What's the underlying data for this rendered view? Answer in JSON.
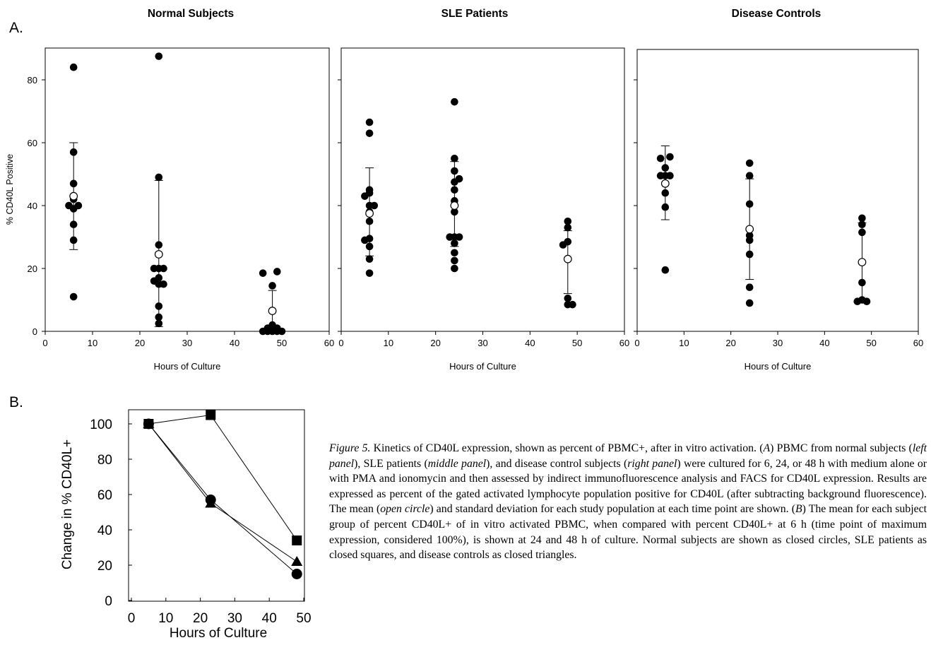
{
  "panel_a_label": "A.",
  "panel_b_label": "B.",
  "caption": {
    "fig_label": "Figure 5.",
    "t1": " Kinetics of CD40L expression, shown as percent of PBMC+, after in vitro activation. (",
    "A": "A",
    "t2": ") PBMC from normal subjects (",
    "left_panel": "left panel",
    "t3": "), SLE patients (",
    "middle_panel": "middle panel",
    "t4": "), and disease control subjects (",
    "right_panel": "right panel",
    "t5": ") were cultured for 6, 24, or 48 h with medium alone or with PMA and ionomycin and then assessed by indirect immunofluorescence analysis and FACS for CD40L expression. Results are expressed as percent of the gated activated lymphocyte population positive for CD40L (after subtracting background fluorescence). The mean (",
    "open_circle": "open circle",
    "t6": ") and standard deviation for each study population at each time point are shown. (",
    "B": "B",
    "t7": ") The mean for each subject group of percent CD40L+ of in vitro activated PBMC, when compared with percent CD40L+ at 6 h (time point of maximum expression, considered 100%), is shown at 24 and 48 h of culture. Normal subjects are shown as closed circles, SLE patients as closed squares, and disease controls as closed triangles."
  },
  "chart_data": [
    {
      "type": "scatter",
      "title": "Normal Subjects",
      "xlabel": "Hours of Culture",
      "ylabel": "% CD40L Positive",
      "xlim": [
        0,
        60
      ],
      "ylim": [
        0,
        90
      ],
      "xticks": [
        0,
        10,
        20,
        30,
        40,
        50,
        60
      ],
      "yticks": [
        0,
        20,
        40,
        60,
        80
      ],
      "points": [
        [
          6,
          84
        ],
        [
          6,
          57
        ],
        [
          6,
          47
        ],
        [
          6,
          43
        ],
        [
          6,
          42
        ],
        [
          5,
          40
        ],
        [
          7,
          40
        ],
        [
          6,
          39
        ],
        [
          6,
          34
        ],
        [
          6,
          29
        ],
        [
          6,
          11
        ],
        [
          24,
          87.5
        ],
        [
          24,
          49
        ],
        [
          24,
          27.5
        ],
        [
          23,
          20
        ],
        [
          24,
          20
        ],
        [
          25,
          20
        ],
        [
          24,
          17
        ],
        [
          23,
          16
        ],
        [
          24,
          15
        ],
        [
          25,
          15
        ],
        [
          24,
          8
        ],
        [
          24,
          4.5
        ],
        [
          24,
          2.5
        ],
        [
          46,
          18.5
        ],
        [
          49,
          19
        ],
        [
          48,
          14.5
        ],
        [
          48,
          2
        ],
        [
          47,
          1
        ],
        [
          49,
          1
        ],
        [
          46,
          0
        ],
        [
          47,
          0
        ],
        [
          48,
          0
        ],
        [
          49,
          0
        ],
        [
          50,
          0
        ]
      ],
      "means": [
        {
          "x": 6,
          "y": 43,
          "sd": [
            26,
            60
          ]
        },
        {
          "x": 24,
          "y": 24.5,
          "sd": [
            1.5,
            48
          ]
        },
        {
          "x": 48,
          "y": 6.5,
          "sd": [
            0,
            13
          ]
        }
      ]
    },
    {
      "type": "scatter",
      "title": "SLE Patients",
      "xlabel": "Hours of Culture",
      "xlim": [
        0,
        60
      ],
      "ylim": [
        0,
        90
      ],
      "xticks": [
        0,
        10,
        20,
        30,
        40,
        50,
        60
      ],
      "points": [
        [
          6,
          66.5
        ],
        [
          6,
          63
        ],
        [
          6,
          45
        ],
        [
          6,
          44
        ],
        [
          5,
          43
        ],
        [
          6,
          40
        ],
        [
          7,
          40
        ],
        [
          6,
          38
        ],
        [
          6,
          35
        ],
        [
          5,
          29
        ],
        [
          6,
          29.5
        ],
        [
          6,
          27
        ],
        [
          6,
          23
        ],
        [
          6,
          18.5
        ],
        [
          24,
          73
        ],
        [
          24,
          55
        ],
        [
          24,
          51
        ],
        [
          25,
          48.5
        ],
        [
          24,
          47.5
        ],
        [
          24,
          45
        ],
        [
          24,
          41.5
        ],
        [
          24,
          38
        ],
        [
          23,
          30
        ],
        [
          24,
          30
        ],
        [
          25,
          30
        ],
        [
          24,
          28
        ],
        [
          24,
          25
        ],
        [
          24,
          22.5
        ],
        [
          24,
          20
        ],
        [
          47,
          27.5
        ],
        [
          48,
          35
        ],
        [
          48,
          33
        ],
        [
          48,
          28.5
        ],
        [
          48,
          10.5
        ],
        [
          48,
          8.5
        ],
        [
          49,
          8.5
        ]
      ],
      "means": [
        {
          "x": 6,
          "y": 37.5,
          "sd": [
            24,
            52
          ]
        },
        {
          "x": 24,
          "y": 40,
          "sd": [
            27,
            54
          ]
        },
        {
          "x": 48,
          "y": 23,
          "sd": [
            12,
            32
          ]
        }
      ]
    },
    {
      "type": "scatter",
      "title": "Disease Controls",
      "xlabel": "Hours of Culture",
      "xlim": [
        0,
        60
      ],
      "ylim": [
        0,
        90
      ],
      "xticks": [
        0,
        10,
        20,
        30,
        40,
        50,
        60
      ],
      "points": [
        [
          5,
          55
        ],
        [
          7,
          55.5
        ],
        [
          6,
          52
        ],
        [
          5,
          49.5
        ],
        [
          6,
          49.5
        ],
        [
          7,
          49.5
        ],
        [
          6,
          44
        ],
        [
          6,
          39.5
        ],
        [
          6,
          19.5
        ],
        [
          24,
          53.5
        ],
        [
          24,
          49.5
        ],
        [
          24,
          40.5
        ],
        [
          24,
          30.5
        ],
        [
          24,
          29
        ],
        [
          24,
          24.5
        ],
        [
          24,
          14
        ],
        [
          24,
          9
        ],
        [
          48,
          36
        ],
        [
          48,
          34
        ],
        [
          48,
          31.5
        ],
        [
          48,
          15.5
        ],
        [
          47,
          9.5
        ],
        [
          48,
          10
        ],
        [
          49,
          9.5
        ]
      ],
      "means": [
        {
          "x": 6,
          "y": 47,
          "sd": [
            35.5,
            59
          ]
        },
        {
          "x": 24,
          "y": 32.5,
          "sd": [
            16.5,
            48.5
          ]
        },
        {
          "x": 48,
          "y": 22,
          "sd": [
            9.5,
            34.5
          ]
        }
      ]
    },
    {
      "type": "line",
      "xlabel": "Hours of Culture",
      "ylabel": "Change in % CD40L+",
      "xlim": [
        -5,
        50
      ],
      "ylim": [
        0,
        110
      ],
      "xticks": [
        0,
        10,
        20,
        30,
        40,
        50
      ],
      "yticks": [
        0,
        20,
        40,
        60,
        80,
        100
      ],
      "series": [
        {
          "marker": "circle",
          "x": [
            5,
            23,
            48
          ],
          "y": [
            100,
            57,
            15
          ]
        },
        {
          "marker": "square",
          "x": [
            5,
            23,
            48
          ],
          "y": [
            100,
            105,
            34
          ]
        },
        {
          "marker": "triangle",
          "x": [
            5,
            23,
            48
          ],
          "y": [
            100,
            55,
            22
          ]
        }
      ]
    }
  ]
}
